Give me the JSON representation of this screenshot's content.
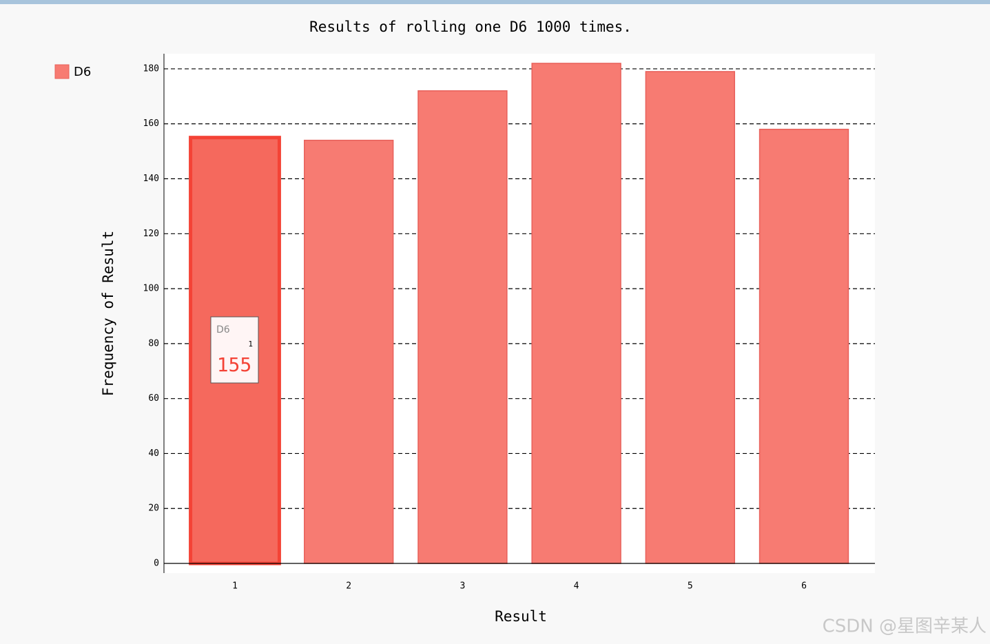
{
  "chart_data": {
    "type": "bar",
    "title": "Results of rolling one D6 1000 times.",
    "x_label": "Result",
    "y_label": "Frequency of Result",
    "categories": [
      "1",
      "2",
      "3",
      "4",
      "5",
      "6"
    ],
    "series": [
      {
        "name": "D6",
        "color": "#f77b72",
        "values": [
          155,
          154,
          172,
          182,
          179,
          158
        ]
      }
    ],
    "ylim": [
      -3.5,
      185.5
    ],
    "yticks": [
      0,
      20,
      40,
      60,
      80,
      100,
      120,
      140,
      160,
      180
    ],
    "grid": true,
    "legend": "top-left",
    "tooltip": {
      "series": 0,
      "index": 0
    }
  },
  "watermark": "CSDN @星图辛某人"
}
